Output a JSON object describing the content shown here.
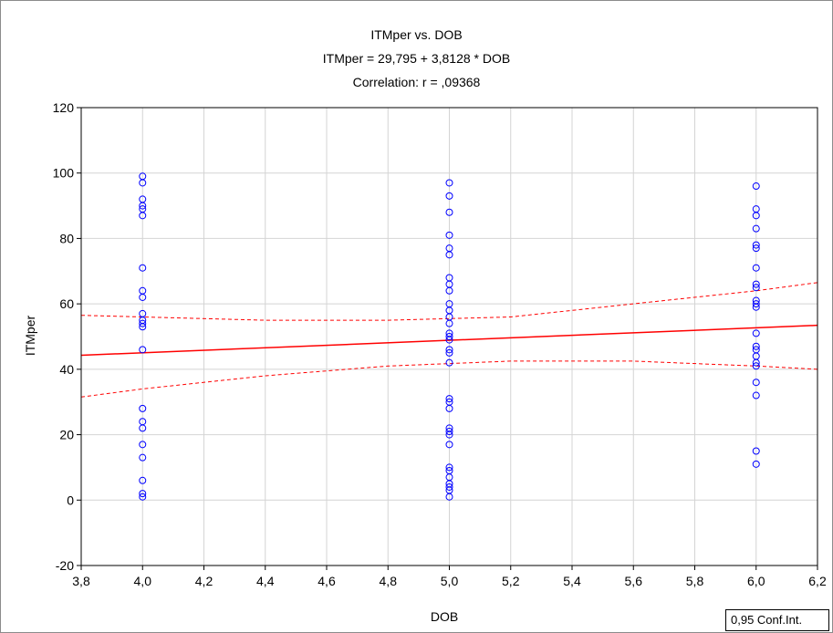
{
  "chart_data": {
    "type": "scatter",
    "title_lines": [
      "ITMper   vs. DOB",
      "ITMper   = 29,795 + 3,8128 * DOB",
      "Correlation: r = ,09368"
    ],
    "xlabel": "DOB",
    "ylabel": "ITMper",
    "xlim": [
      3.8,
      6.2
    ],
    "ylim": [
      -20,
      120
    ],
    "x_ticks": [
      3.8,
      4.0,
      4.2,
      4.4,
      4.6,
      4.8,
      5.0,
      5.2,
      5.4,
      5.6,
      5.8,
      6.0,
      6.2
    ],
    "x_tick_labels": [
      "3,8",
      "4,0",
      "4,2",
      "4,4",
      "4,6",
      "4,8",
      "5,0",
      "5,2",
      "5,4",
      "5,6",
      "5,8",
      "6,0",
      "6,2"
    ],
    "y_ticks": [
      -20,
      0,
      20,
      40,
      60,
      80,
      100,
      120
    ],
    "y_tick_labels": [
      "-20",
      "0",
      "20",
      "40",
      "60",
      "80",
      "100",
      "120"
    ],
    "grid": true,
    "series": [
      {
        "x_group": 4.0,
        "y": [
          99,
          97,
          92,
          90,
          89,
          87,
          71,
          64,
          62,
          57,
          55,
          54,
          53,
          46,
          28,
          24,
          22,
          17,
          13,
          6,
          2,
          1
        ]
      },
      {
        "x_group": 5.0,
        "y": [
          97,
          93,
          88,
          81,
          77,
          75,
          68,
          66,
          64,
          60,
          58,
          56,
          54,
          51,
          50,
          49,
          46,
          45,
          42,
          31,
          30,
          28,
          22,
          21,
          20,
          17,
          10,
          9,
          7,
          5,
          4,
          3,
          1
        ]
      },
      {
        "x_group": 6.0,
        "y": [
          96,
          89,
          87,
          83,
          78,
          77,
          71,
          66,
          65,
          61,
          60,
          59,
          51,
          47,
          46,
          44,
          42,
          41,
          36,
          32,
          15,
          11
        ]
      }
    ],
    "regression": {
      "intercept": 29.795,
      "slope": 3.8128
    },
    "confidence_band": {
      "x": [
        3.8,
        4.0,
        4.4,
        4.8,
        5.2,
        5.6,
        6.0,
        6.2
      ],
      "upper": [
        56.5,
        56,
        55,
        55,
        56,
        60,
        64,
        66.5
      ],
      "lower": [
        31.5,
        34,
        38,
        41,
        42.5,
        42.5,
        41,
        40
      ]
    },
    "legend": "0,95 Conf.Int.",
    "marker_color": "#0000ff",
    "line_color": "#ff0000"
  }
}
